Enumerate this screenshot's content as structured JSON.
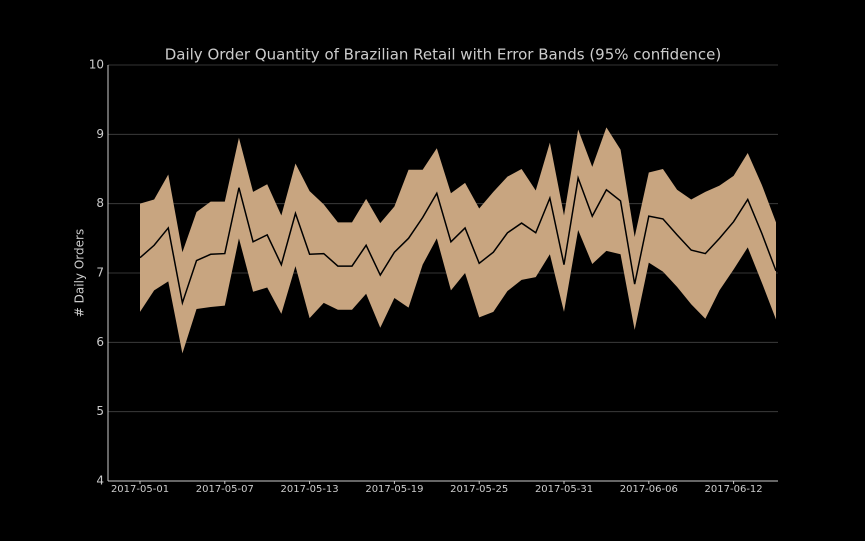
{
  "chart_data": {
    "type": "line_band",
    "title": "Daily Order Quantity of Brazilian Retail with Error Bands (95% confidence)",
    "ylabel": "# Daily Orders",
    "x": [
      "2017-05-01",
      "2017-05-02",
      "2017-05-03",
      "2017-05-04",
      "2017-05-05",
      "2017-05-06",
      "2017-05-07",
      "2017-05-08",
      "2017-05-09",
      "2017-05-10",
      "2017-05-11",
      "2017-05-12",
      "2017-05-13",
      "2017-05-14",
      "2017-05-15",
      "2017-05-16",
      "2017-05-17",
      "2017-05-18",
      "2017-05-19",
      "2017-05-20",
      "2017-05-21",
      "2017-05-22",
      "2017-05-23",
      "2017-05-24",
      "2017-05-25",
      "2017-05-26",
      "2017-05-27",
      "2017-05-28",
      "2017-05-29",
      "2017-05-30",
      "2017-05-31",
      "2017-06-01",
      "2017-06-02",
      "2017-06-03",
      "2017-06-04",
      "2017-06-05",
      "2017-06-06",
      "2017-06-07",
      "2017-06-08",
      "2017-06-09",
      "2017-06-10",
      "2017-06-11",
      "2017-06-12",
      "2017-06-13",
      "2017-06-14",
      "2017-06-15"
    ],
    "series": [
      {
        "color": "#000000",
        "band_color": "#c8a580",
        "values": [
          7.22,
          7.4,
          7.65,
          6.57,
          7.18,
          7.27,
          7.28,
          8.23,
          7.45,
          7.55,
          7.12,
          7.86,
          7.27,
          7.28,
          7.1,
          7.1,
          7.4,
          6.97,
          7.3,
          7.5,
          7.8,
          8.15,
          7.45,
          7.65,
          7.14,
          7.3,
          7.58,
          7.72,
          7.58,
          8.08,
          7.12,
          8.37,
          7.82,
          8.2,
          8.04,
          6.84,
          7.82,
          7.78,
          7.55,
          7.33,
          7.28,
          7.5,
          7.74,
          8.06,
          7.57,
          7.03
        ],
        "upper": [
          8.0,
          8.06,
          8.42,
          7.3,
          7.88,
          8.03,
          8.03,
          8.95,
          8.17,
          8.28,
          7.83,
          8.58,
          8.18,
          7.99,
          7.73,
          7.73,
          8.07,
          7.72,
          7.96,
          8.49,
          8.49,
          8.8,
          8.15,
          8.3,
          7.93,
          8.17,
          8.39,
          8.5,
          8.19,
          8.88,
          7.83,
          9.07,
          8.53,
          9.1,
          8.78,
          7.52,
          8.45,
          8.5,
          8.2,
          8.06,
          8.17,
          8.26,
          8.4,
          8.73,
          8.27,
          7.73
        ],
        "lower": [
          6.44,
          6.75,
          6.88,
          5.84,
          6.48,
          6.51,
          6.53,
          7.5,
          6.73,
          6.79,
          6.41,
          7.1,
          6.35,
          6.57,
          6.47,
          6.47,
          6.7,
          6.21,
          6.64,
          6.5,
          7.12,
          7.5,
          6.75,
          7.0,
          6.36,
          6.44,
          6.74,
          6.9,
          6.94,
          7.27,
          6.44,
          7.62,
          7.13,
          7.32,
          7.27,
          6.18,
          7.15,
          7.02,
          6.8,
          6.55,
          6.34,
          6.75,
          7.05,
          7.37,
          6.86,
          6.33
        ]
      }
    ],
    "xticks": [
      "2017-05-01",
      "2017-05-07",
      "2017-05-13",
      "2017-05-19",
      "2017-05-25",
      "2017-05-31",
      "2017-06-06",
      "2017-06-12"
    ],
    "ylim": [
      4,
      10
    ],
    "yticks": [
      4,
      5,
      6,
      7,
      8,
      9,
      10
    ],
    "grid": true
  }
}
